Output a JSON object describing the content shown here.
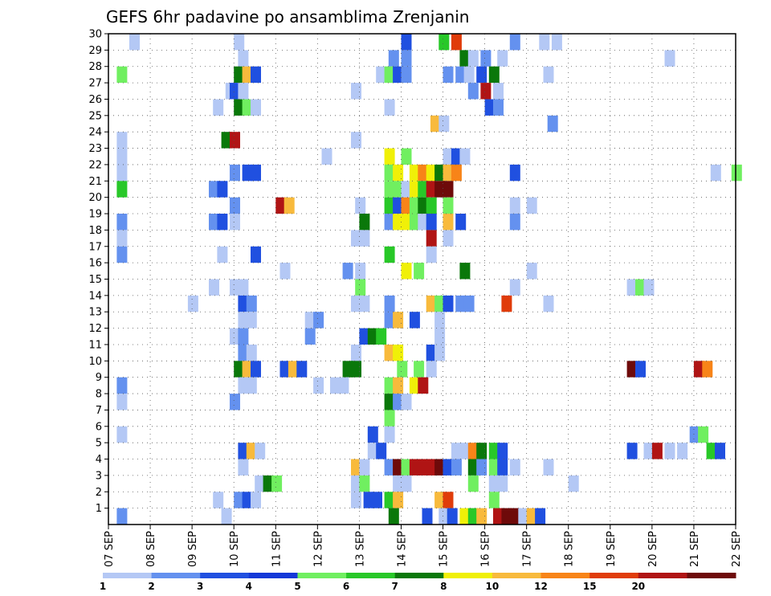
{
  "chart_data": {
    "type": "heatmap",
    "title": "GEFS 6hr padavine po ansamblima Zrenjanin",
    "x_labels": [
      "07 SEP",
      "08 SEP",
      "09 SEP",
      "10 SEP",
      "11 SEP",
      "12 SEP",
      "13 SEP",
      "14 SEP",
      "15 SEP",
      "16 SEP",
      "17 SEP",
      "18 SEP",
      "19 SEP",
      "20 SEP",
      "21 SEP",
      "22 SEP"
    ],
    "x_range": [
      "07 SEP 00Z",
      "22 SEP 00Z"
    ],
    "step_hours": 6,
    "y_range": [
      0,
      30
    ],
    "y_ticks": [
      1,
      2,
      3,
      4,
      5,
      6,
      7,
      8,
      9,
      10,
      11,
      12,
      13,
      14,
      15,
      16,
      17,
      18,
      19,
      20,
      21,
      22,
      23,
      24,
      25,
      26,
      27,
      28,
      29,
      30
    ],
    "grid": true,
    "colorbar": {
      "levels": [
        "1",
        "2",
        "3",
        "4",
        "5",
        "6",
        "7",
        "8",
        "10",
        "12",
        "15",
        "20",
        ""
      ],
      "colors": [
        "#b4c8f5",
        "#6491ef",
        "#2050e0",
        "#1438d8",
        "#70ef60",
        "#28c828",
        "#0a780a",
        "#f0f008",
        "#f8ba3c",
        "#f88418",
        "#e03c0a",
        "#b01414",
        "#6e0a0a"
      ]
    },
    "cells": [
      [
        0.5,
        30,
        0
      ],
      [
        3.0,
        30,
        0
      ],
      [
        7.0,
        30,
        2
      ],
      [
        7.9,
        30,
        5
      ],
      [
        8.2,
        30,
        10
      ],
      [
        9.6,
        30,
        1
      ],
      [
        10.3,
        30,
        0
      ],
      [
        10.6,
        30,
        0
      ],
      [
        6.7,
        29,
        1
      ],
      [
        7.0,
        29,
        1
      ],
      [
        8.4,
        29,
        6
      ],
      [
        8.6,
        29,
        0
      ],
      [
        8.9,
        29,
        1
      ],
      [
        9.3,
        29,
        0
      ],
      [
        13.3,
        29,
        0
      ],
      [
        3.1,
        29,
        0
      ],
      [
        0.2,
        28,
        4
      ],
      [
        3.0,
        28,
        6
      ],
      [
        3.2,
        28,
        8
      ],
      [
        3.4,
        28,
        2
      ],
      [
        6.4,
        28,
        0
      ],
      [
        6.6,
        28,
        4
      ],
      [
        6.8,
        28,
        2
      ],
      [
        7.0,
        28,
        1
      ],
      [
        8.0,
        28,
        1
      ],
      [
        8.3,
        28,
        1
      ],
      [
        8.5,
        28,
        0
      ],
      [
        8.8,
        28,
        2
      ],
      [
        9.1,
        28,
        6
      ],
      [
        10.4,
        28,
        0
      ],
      [
        2.8,
        27,
        0
      ],
      [
        2.9,
        27,
        2
      ],
      [
        3.1,
        27,
        0
      ],
      [
        5.8,
        27,
        0
      ],
      [
        8.6,
        27,
        1
      ],
      [
        8.9,
        27,
        11
      ],
      [
        9.2,
        27,
        0
      ],
      [
        2.5,
        26,
        0
      ],
      [
        3.0,
        26,
        6
      ],
      [
        3.2,
        26,
        4
      ],
      [
        3.4,
        26,
        0
      ],
      [
        6.6,
        26,
        0
      ],
      [
        9.0,
        26,
        2
      ],
      [
        9.2,
        26,
        1
      ],
      [
        7.7,
        25,
        8
      ],
      [
        7.9,
        25,
        0
      ],
      [
        10.5,
        25,
        1
      ],
      [
        0.2,
        24,
        0
      ],
      [
        2.7,
        24,
        6
      ],
      [
        2.9,
        24,
        11
      ],
      [
        5.8,
        24,
        0
      ],
      [
        0.2,
        23,
        0
      ],
      [
        5.1,
        23,
        0
      ],
      [
        6.6,
        23,
        7
      ],
      [
        7.0,
        23,
        4
      ],
      [
        8.0,
        23,
        0
      ],
      [
        8.2,
        23,
        2
      ],
      [
        8.4,
        23,
        0
      ],
      [
        0.2,
        22,
        0
      ],
      [
        2.9,
        22,
        1
      ],
      [
        3.2,
        22,
        2
      ],
      [
        3.4,
        22,
        2
      ],
      [
        6.6,
        22,
        4
      ],
      [
        6.8,
        22,
        7
      ],
      [
        7.2,
        22,
        7
      ],
      [
        7.4,
        22,
        9
      ],
      [
        7.6,
        22,
        7
      ],
      [
        7.8,
        22,
        6
      ],
      [
        8.0,
        22,
        8
      ],
      [
        8.2,
        22,
        9
      ],
      [
        9.6,
        22,
        2
      ],
      [
        14.4,
        22,
        0
      ],
      [
        14.9,
        22,
        4
      ],
      [
        0.2,
        21,
        5
      ],
      [
        2.4,
        21,
        1
      ],
      [
        2.6,
        21,
        2
      ],
      [
        6.6,
        21,
        4
      ],
      [
        6.8,
        21,
        4
      ],
      [
        7.0,
        21,
        0
      ],
      [
        7.2,
        21,
        7
      ],
      [
        7.4,
        21,
        5
      ],
      [
        7.6,
        21,
        11
      ],
      [
        7.8,
        21,
        12
      ],
      [
        8.0,
        21,
        12
      ],
      [
        2.9,
        20,
        1
      ],
      [
        4.0,
        20,
        11
      ],
      [
        4.2,
        20,
        8
      ],
      [
        5.9,
        20,
        0
      ],
      [
        6.6,
        20,
        5
      ],
      [
        6.8,
        20,
        2
      ],
      [
        7.0,
        20,
        9
      ],
      [
        7.2,
        20,
        4
      ],
      [
        7.4,
        20,
        6
      ],
      [
        7.6,
        20,
        5
      ],
      [
        8.0,
        20,
        4
      ],
      [
        9.6,
        20,
        0
      ],
      [
        10.0,
        20,
        0
      ],
      [
        0.2,
        19,
        1
      ],
      [
        2.4,
        19,
        1
      ],
      [
        2.6,
        19,
        2
      ],
      [
        2.9,
        19,
        0
      ],
      [
        6.0,
        19,
        6
      ],
      [
        6.6,
        19,
        1
      ],
      [
        6.8,
        19,
        7
      ],
      [
        7.0,
        19,
        7
      ],
      [
        7.2,
        19,
        4
      ],
      [
        7.4,
        19,
        0
      ],
      [
        7.6,
        19,
        2
      ],
      [
        8.0,
        19,
        8
      ],
      [
        8.3,
        19,
        2
      ],
      [
        9.6,
        19,
        1
      ],
      [
        0.2,
        18,
        0
      ],
      [
        5.8,
        18,
        0
      ],
      [
        6.0,
        18,
        0
      ],
      [
        7.6,
        18,
        11
      ],
      [
        8.0,
        18,
        0
      ],
      [
        0.2,
        17,
        1
      ],
      [
        2.6,
        17,
        0
      ],
      [
        3.4,
        17,
        2
      ],
      [
        6.6,
        17,
        5
      ],
      [
        7.6,
        17,
        0
      ],
      [
        4.1,
        16,
        0
      ],
      [
        5.6,
        16,
        1
      ],
      [
        5.9,
        16,
        0
      ],
      [
        7.0,
        16,
        7
      ],
      [
        7.3,
        16,
        4
      ],
      [
        8.4,
        16,
        6
      ],
      [
        10.0,
        16,
        0
      ],
      [
        2.4,
        15,
        0
      ],
      [
        2.9,
        15,
        0
      ],
      [
        3.1,
        15,
        0
      ],
      [
        5.9,
        15,
        4
      ],
      [
        9.6,
        15,
        0
      ],
      [
        12.4,
        15,
        0
      ],
      [
        12.6,
        15,
        4
      ],
      [
        12.8,
        15,
        0
      ],
      [
        1.9,
        14,
        0
      ],
      [
        3.1,
        14,
        2
      ],
      [
        3.3,
        14,
        1
      ],
      [
        5.8,
        14,
        0
      ],
      [
        6.0,
        14,
        0
      ],
      [
        6.6,
        14,
        1
      ],
      [
        7.6,
        14,
        8
      ],
      [
        7.8,
        14,
        4
      ],
      [
        8.0,
        14,
        2
      ],
      [
        8.3,
        14,
        1
      ],
      [
        8.5,
        14,
        1
      ],
      [
        9.4,
        14,
        10
      ],
      [
        10.4,
        14,
        0
      ],
      [
        3.1,
        13,
        0
      ],
      [
        3.3,
        13,
        0
      ],
      [
        4.7,
        13,
        0
      ],
      [
        4.9,
        13,
        1
      ],
      [
        6.6,
        13,
        1
      ],
      [
        6.8,
        13,
        8
      ],
      [
        7.2,
        13,
        2
      ],
      [
        7.8,
        13,
        0
      ],
      [
        2.9,
        12,
        0
      ],
      [
        3.1,
        12,
        1
      ],
      [
        4.7,
        12,
        1
      ],
      [
        6.0,
        12,
        2
      ],
      [
        6.2,
        12,
        6
      ],
      [
        6.4,
        12,
        5
      ],
      [
        7.8,
        12,
        0
      ],
      [
        3.1,
        11,
        1
      ],
      [
        3.3,
        11,
        0
      ],
      [
        5.8,
        11,
        0
      ],
      [
        6.6,
        11,
        8
      ],
      [
        6.8,
        11,
        7
      ],
      [
        7.6,
        11,
        2
      ],
      [
        7.8,
        11,
        0
      ],
      [
        3.0,
        10,
        6
      ],
      [
        3.2,
        10,
        8
      ],
      [
        3.4,
        10,
        2
      ],
      [
        4.1,
        10,
        2
      ],
      [
        4.3,
        10,
        8
      ],
      [
        4.5,
        10,
        2
      ],
      [
        5.6,
        10,
        6
      ],
      [
        5.8,
        10,
        6
      ],
      [
        6.9,
        10,
        4
      ],
      [
        7.3,
        10,
        4
      ],
      [
        7.6,
        10,
        0
      ],
      [
        12.4,
        10,
        12
      ],
      [
        12.6,
        10,
        2
      ],
      [
        14.0,
        10,
        11
      ],
      [
        14.2,
        10,
        9
      ],
      [
        0.2,
        9,
        1
      ],
      [
        3.1,
        9,
        0
      ],
      [
        3.3,
        9,
        0
      ],
      [
        4.9,
        9,
        0
      ],
      [
        5.3,
        9,
        0
      ],
      [
        5.5,
        9,
        0
      ],
      [
        6.6,
        9,
        4
      ],
      [
        6.8,
        9,
        8
      ],
      [
        7.2,
        9,
        7
      ],
      [
        7.4,
        9,
        11
      ],
      [
        0.2,
        8,
        0
      ],
      [
        2.9,
        8,
        1
      ],
      [
        6.6,
        8,
        6
      ],
      [
        6.8,
        8,
        1
      ],
      [
        7.0,
        8,
        0
      ],
      [
        6.6,
        7,
        4
      ],
      [
        0.2,
        6,
        0
      ],
      [
        6.2,
        6,
        2
      ],
      [
        6.6,
        6,
        0
      ],
      [
        13.9,
        6,
        1
      ],
      [
        14.1,
        6,
        4
      ],
      [
        3.1,
        5,
        2
      ],
      [
        3.3,
        5,
        8
      ],
      [
        3.5,
        5,
        0
      ],
      [
        6.2,
        5,
        0
      ],
      [
        6.4,
        5,
        2
      ],
      [
        8.2,
        5,
        0
      ],
      [
        8.4,
        5,
        0
      ],
      [
        8.6,
        5,
        9
      ],
      [
        8.8,
        5,
        6
      ],
      [
        9.1,
        5,
        5
      ],
      [
        9.3,
        5,
        2
      ],
      [
        12.4,
        5,
        2
      ],
      [
        12.8,
        5,
        0
      ],
      [
        13.0,
        5,
        11
      ],
      [
        13.3,
        5,
        0
      ],
      [
        13.6,
        5,
        0
      ],
      [
        14.3,
        5,
        5
      ],
      [
        14.5,
        5,
        2
      ],
      [
        3.1,
        4,
        0
      ],
      [
        5.8,
        4,
        8
      ],
      [
        6.0,
        4,
        0
      ],
      [
        6.6,
        4,
        1
      ],
      [
        6.8,
        4,
        12
      ],
      [
        7.0,
        4,
        4
      ],
      [
        7.2,
        4,
        11
      ],
      [
        7.4,
        4,
        11
      ],
      [
        7.6,
        4,
        11
      ],
      [
        7.8,
        4,
        12
      ],
      [
        8.0,
        4,
        2
      ],
      [
        8.2,
        4,
        1
      ],
      [
        8.6,
        4,
        6
      ],
      [
        8.8,
        4,
        1
      ],
      [
        9.1,
        4,
        4
      ],
      [
        9.3,
        4,
        2
      ],
      [
        9.6,
        4,
        0
      ],
      [
        10.4,
        4,
        0
      ],
      [
        3.5,
        3,
        0
      ],
      [
        3.7,
        3,
        6
      ],
      [
        3.9,
        3,
        4
      ],
      [
        5.8,
        3,
        0
      ],
      [
        6.0,
        3,
        4
      ],
      [
        6.8,
        3,
        0
      ],
      [
        7.0,
        3,
        0
      ],
      [
        8.6,
        3,
        4
      ],
      [
        9.1,
        3,
        0
      ],
      [
        9.3,
        3,
        0
      ],
      [
        11.0,
        3,
        0
      ],
      [
        2.5,
        2,
        0
      ],
      [
        3.0,
        2,
        1
      ],
      [
        3.2,
        2,
        2
      ],
      [
        3.4,
        2,
        0
      ],
      [
        5.8,
        2,
        0
      ],
      [
        6.1,
        2,
        2
      ],
      [
        6.3,
        2,
        2
      ],
      [
        6.6,
        2,
        5
      ],
      [
        6.8,
        2,
        8
      ],
      [
        7.8,
        2,
        8
      ],
      [
        8.0,
        2,
        10
      ],
      [
        9.1,
        2,
        4
      ],
      [
        0.2,
        1,
        1
      ],
      [
        2.7,
        1,
        0
      ],
      [
        6.7,
        1,
        6
      ],
      [
        7.5,
        1,
        2
      ],
      [
        7.9,
        1,
        0
      ],
      [
        8.1,
        1,
        2
      ],
      [
        8.4,
        1,
        7
      ],
      [
        8.6,
        1,
        5
      ],
      [
        8.8,
        1,
        8
      ],
      [
        9.2,
        1,
        11
      ],
      [
        9.4,
        1,
        12
      ],
      [
        9.6,
        1,
        12
      ],
      [
        9.8,
        1,
        0
      ],
      [
        10.0,
        1,
        8
      ],
      [
        10.2,
        1,
        2
      ]
    ]
  }
}
